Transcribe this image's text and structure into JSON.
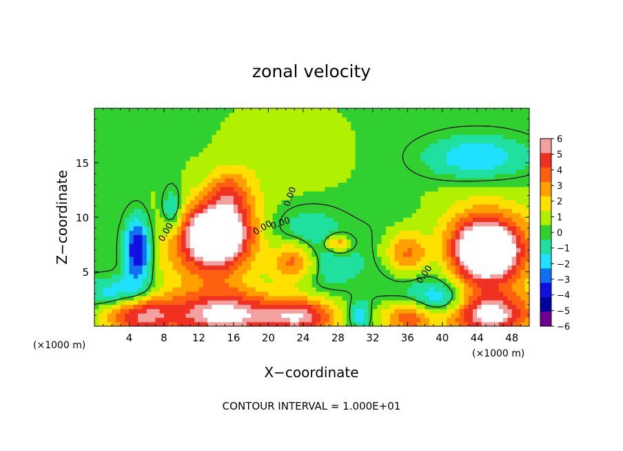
{
  "chart_data": {
    "type": "heatmap",
    "title": "zonal velocity",
    "xlabel": "X−coordinate",
    "ylabel": "Z−coordinate",
    "x_unit_left": "(×1000 m)",
    "x_unit_right": "(×1000 m)",
    "footer": "CONTOUR INTERVAL = 1.000E+01",
    "xlim": [
      0,
      50
    ],
    "ylim": [
      0,
      20
    ],
    "x_ticks": [
      "4",
      "8",
      "12",
      "16",
      "20",
      "24",
      "28",
      "32",
      "36",
      "40",
      "44",
      "48"
    ],
    "x_tick_values": [
      4,
      8,
      12,
      16,
      20,
      24,
      28,
      32,
      36,
      40,
      44,
      48
    ],
    "y_ticks": [
      "5",
      "10",
      "15"
    ],
    "y_tick_values": [
      5,
      10,
      15
    ],
    "colorbar_ticks": [
      "6",
      "5",
      "4",
      "3",
      "2",
      "1",
      "0",
      "−1",
      "−2",
      "−3",
      "−4",
      "−5",
      "−6"
    ],
    "colorbar_colors": [
      "#f2a0a0",
      "#f03020",
      "#ff6010",
      "#ffa000",
      "#ffe000",
      "#b0f000",
      "#30d030",
      "#20e0a0",
      "#20e0ff",
      "#1070f0",
      "#1010e0",
      "#0000a0",
      "#700090"
    ],
    "contour_labels": [
      "0.00",
      "0.00",
      "0.00",
      "0.00",
      "0.00"
    ],
    "blobs": [
      {
        "x": 14,
        "y": 8.5,
        "rx": 4,
        "ry": 2.8,
        "v": 7
      },
      {
        "x": 14,
        "y": 7,
        "rx": 7,
        "ry": 4.5,
        "v": 3
      },
      {
        "x": 15.5,
        "y": 12.3,
        "rx": 2.5,
        "ry": 2.2,
        "v": 3
      },
      {
        "x": 5,
        "y": 7,
        "rx": 1.6,
        "ry": 3,
        "v": -5.5
      },
      {
        "x": 9,
        "y": 10.5,
        "rx": 1.3,
        "ry": 2.2,
        "v": -3
      },
      {
        "x": 23,
        "y": 6,
        "rx": 3,
        "ry": 2.2,
        "v": 7
      },
      {
        "x": 23.5,
        "y": 6.5,
        "rx": 5,
        "ry": 3.5,
        "v": -4.5
      },
      {
        "x": 36,
        "y": 6.5,
        "rx": 3,
        "ry": 2.4,
        "v": 7
      },
      {
        "x": 36.5,
        "y": 6,
        "rx": 4.2,
        "ry": 3.3,
        "v": -4.5
      },
      {
        "x": 45,
        "y": 7,
        "rx": 3.8,
        "ry": 2.7,
        "v": 7
      },
      {
        "x": 45,
        "y": 7,
        "rx": 6.5,
        "ry": 4.5,
        "v": 3.5
      },
      {
        "x": 44,
        "y": 15.5,
        "rx": 6,
        "ry": 2,
        "v": -2.8
      },
      {
        "x": 15,
        "y": 1,
        "rx": 7,
        "ry": 2.2,
        "v": 6
      },
      {
        "x": 5,
        "y": 1.2,
        "rx": 4,
        "ry": 2,
        "v": 5
      },
      {
        "x": 24,
        "y": 1,
        "rx": 4,
        "ry": 1.8,
        "v": 5
      },
      {
        "x": 45.5,
        "y": 1,
        "rx": 5,
        "ry": 2,
        "v": 6
      },
      {
        "x": 36,
        "y": 0.8,
        "rx": 3,
        "ry": 1.5,
        "v": 4
      },
      {
        "x": 30.5,
        "y": 1,
        "rx": 1.2,
        "ry": 1.3,
        "v": -3
      },
      {
        "x": 3,
        "y": 3,
        "rx": 4,
        "ry": 1.5,
        "v": -3.5
      },
      {
        "x": 40,
        "y": 2.5,
        "rx": 3,
        "ry": 1.5,
        "v": -3
      },
      {
        "x": 22,
        "y": 16,
        "rx": 6,
        "ry": 4,
        "v": 1
      },
      {
        "x": 28,
        "y": 7.6,
        "rx": 1.5,
        "ry": 0.8,
        "v": 4
      }
    ]
  }
}
